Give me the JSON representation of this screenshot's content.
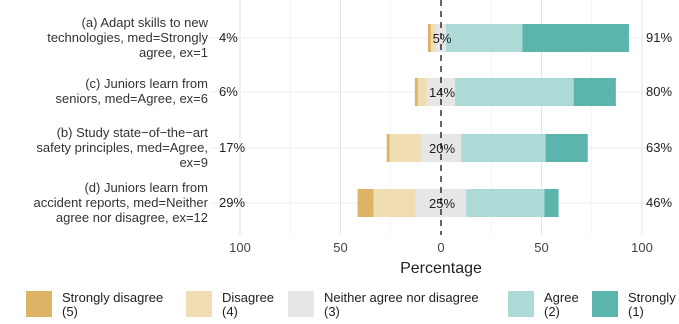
{
  "chart_data": {
    "type": "bar",
    "orientation": "horizontal-diverging",
    "xlabel": "Percentage",
    "xticks": [
      "100",
      "50",
      "0",
      "50",
      "100"
    ],
    "xlim": [
      -100,
      100
    ],
    "grid": true,
    "legend_position": "bottom",
    "series": [
      {
        "name": "Strongly disagree",
        "code": "(5)",
        "color": "#DDB365"
      },
      {
        "name": "Disagree",
        "code": "(4)",
        "color": "#F0DDB3"
      },
      {
        "name": "Neither agree nor disagree",
        "code": "(3)",
        "color": "#E6E6E6"
      },
      {
        "name": "Agree",
        "code": "(2)",
        "color": "#ADDAD6"
      },
      {
        "name": "Strongly",
        "code": "(1)",
        "color": "#5BB5AC"
      }
    ],
    "items": [
      {
        "label": "(a) Adapt skills to new technologies, med=Strongly agree, ex=1",
        "label_lines": [
          "(a) Adapt skills to new",
          "technologies, med=Strongly",
          "agree, ex=1"
        ],
        "values": [
          1.5,
          2.5,
          5,
          38,
          53
        ],
        "left_pct": "4%",
        "neutral_pct": "5%",
        "right_pct": "91%"
      },
      {
        "label": "(c) Juniors learn from seniors, med=Agree, ex=6",
        "label_lines": [
          "(c) Juniors learn from",
          "seniors, med=Agree, ex=6"
        ],
        "values": [
          1.5,
          4.5,
          14,
          59,
          21
        ],
        "left_pct": "6%",
        "neutral_pct": "14%",
        "right_pct": "80%"
      },
      {
        "label": "(b) Study state-of-the-art safety principles, med=Agree, ex=9",
        "label_lines": [
          "(b) Study state−of−the−art",
          "safety principles, med=Agree,",
          "ex=9"
        ],
        "values": [
          1.5,
          15.5,
          20,
          42,
          21
        ],
        "left_pct": "17%",
        "neutral_pct": "20%",
        "right_pct": "63%"
      },
      {
        "label": "(d) Juniors learn from accident reports, med=Neither agree nor disagree, ex=12",
        "label_lines": [
          "(d) Juniors learn from",
          "accident reports, med=Neither",
          "agree nor disagree, ex=12"
        ],
        "values": [
          8,
          21,
          25,
          39,
          7
        ],
        "left_pct": "29%",
        "neutral_pct": "25%",
        "right_pct": "46%"
      }
    ]
  }
}
